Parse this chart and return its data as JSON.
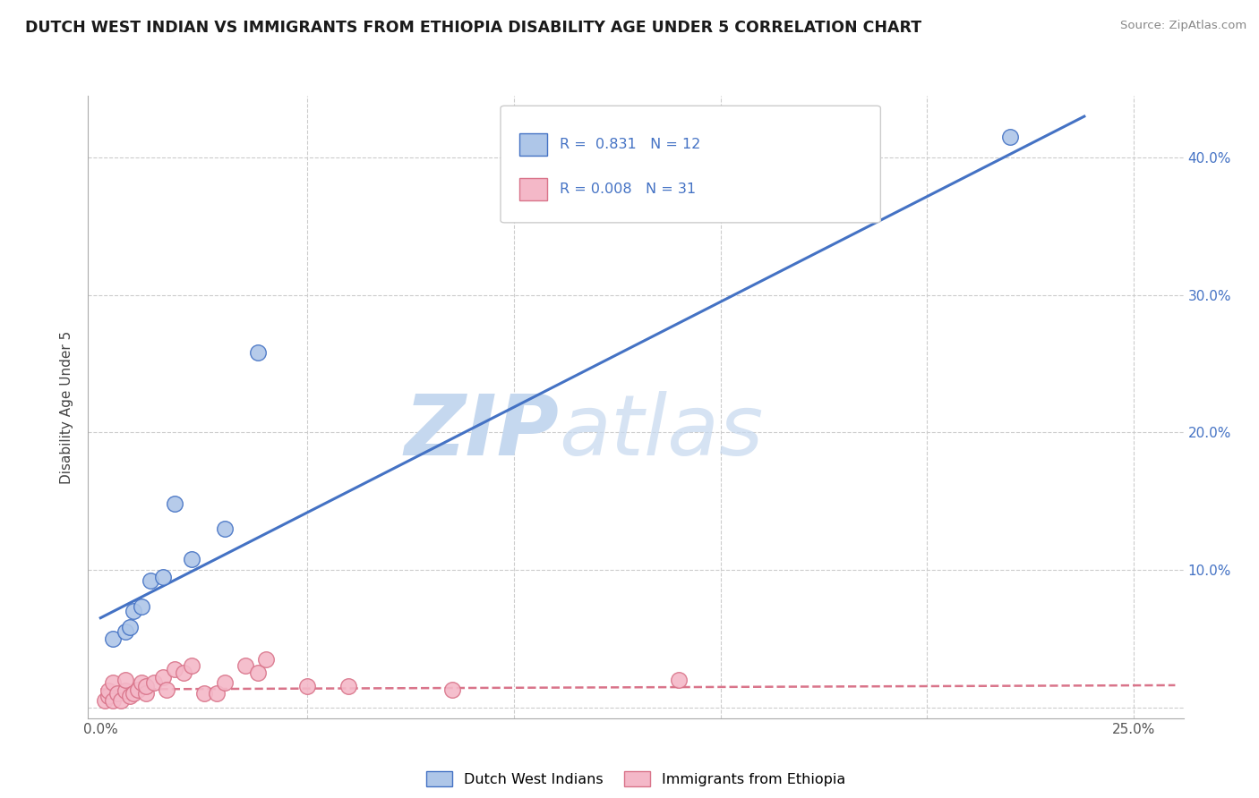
{
  "title": "DUTCH WEST INDIAN VS IMMIGRANTS FROM ETHIOPIA DISABILITY AGE UNDER 5 CORRELATION CHART",
  "source": "Source: ZipAtlas.com",
  "ylabel": "Disability Age Under 5",
  "x_ticks": [
    0.0,
    0.05,
    0.1,
    0.15,
    0.2,
    0.25
  ],
  "x_tick_labels": [
    "0.0%",
    "",
    "",
    "",
    "",
    "25.0%"
  ],
  "y_ticks": [
    0.0,
    0.1,
    0.2,
    0.3,
    0.4
  ],
  "y_tick_labels_right": [
    "",
    "10.0%",
    "20.0%",
    "30.0%",
    "40.0%"
  ],
  "xlim": [
    -0.003,
    0.262
  ],
  "ylim": [
    -0.008,
    0.445
  ],
  "background_color": "#ffffff",
  "blue_color": "#aec6e8",
  "blue_line_color": "#4472c4",
  "pink_color": "#f4b8c8",
  "pink_line_color": "#d9748a",
  "r_blue": "0.831",
  "n_blue": "12",
  "r_pink": "0.008",
  "n_pink": "31",
  "watermark_zip": "ZIP",
  "watermark_atlas": "atlas",
  "legend_label_blue": "Dutch West Indians",
  "legend_label_pink": "Immigrants from Ethiopia",
  "blue_scatter_x": [
    0.003,
    0.006,
    0.007,
    0.008,
    0.01,
    0.012,
    0.015,
    0.018,
    0.022,
    0.03,
    0.038,
    0.22
  ],
  "blue_scatter_y": [
    0.05,
    0.055,
    0.058,
    0.07,
    0.073,
    0.092,
    0.095,
    0.148,
    0.108,
    0.13,
    0.258,
    0.415
  ],
  "pink_scatter_x": [
    0.001,
    0.002,
    0.002,
    0.003,
    0.003,
    0.004,
    0.005,
    0.006,
    0.006,
    0.007,
    0.008,
    0.009,
    0.01,
    0.011,
    0.011,
    0.013,
    0.015,
    0.016,
    0.018,
    0.02,
    0.022,
    0.025,
    0.028,
    0.03,
    0.035,
    0.038,
    0.04,
    0.05,
    0.06,
    0.085,
    0.14
  ],
  "pink_scatter_y": [
    0.005,
    0.008,
    0.012,
    0.005,
    0.018,
    0.01,
    0.005,
    0.012,
    0.02,
    0.008,
    0.01,
    0.013,
    0.018,
    0.01,
    0.015,
    0.018,
    0.022,
    0.013,
    0.028,
    0.025,
    0.03,
    0.01,
    0.01,
    0.018,
    0.03,
    0.025,
    0.035,
    0.015,
    0.015,
    0.013,
    0.02
  ],
  "blue_trend_x": [
    0.0,
    0.238
  ],
  "blue_trend_y": [
    0.065,
    0.43
  ],
  "pink_trend_x": [
    0.0,
    0.26
  ],
  "pink_trend_y": [
    0.013,
    0.016
  ]
}
